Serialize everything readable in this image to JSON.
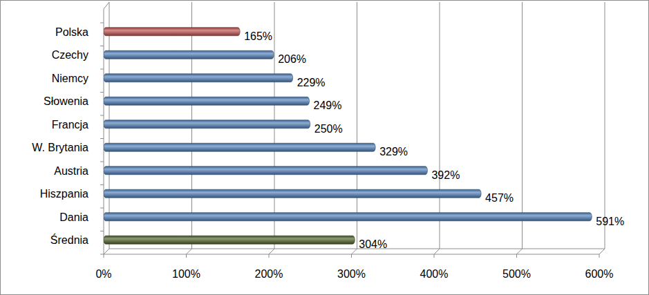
{
  "chart_data": {
    "type": "bar",
    "orientation": "horizontal",
    "categories": [
      "Polska",
      "Czechy",
      "Niemcy",
      "Słowenia",
      "Francja",
      "W. Brytania",
      "Austria",
      "Hiszpania",
      "Dania",
      "Średnia"
    ],
    "values": [
      165,
      206,
      229,
      249,
      250,
      329,
      392,
      457,
      591,
      304
    ],
    "value_labels": [
      "165%",
      "206%",
      "229%",
      "249%",
      "250%",
      "329%",
      "392%",
      "457%",
      "591%",
      "304%"
    ],
    "colors": [
      "#c0504d",
      "#4f81bd",
      "#4f81bd",
      "#4f81bd",
      "#4f81bd",
      "#4f81bd",
      "#4f81bd",
      "#4f81bd",
      "#4f81bd",
      "#4f6228"
    ],
    "xlim": [
      0,
      600
    ],
    "xticks": [
      {
        "value": 0,
        "label": "0%"
      },
      {
        "value": 100,
        "label": "100%"
      },
      {
        "value": 200,
        "label": "200%"
      },
      {
        "value": 300,
        "label": "300%"
      },
      {
        "value": 400,
        "label": "400%"
      },
      {
        "value": 500,
        "label": "500%"
      },
      {
        "value": 600,
        "label": "600%"
      }
    ],
    "grid": true,
    "data_labels": true
  }
}
